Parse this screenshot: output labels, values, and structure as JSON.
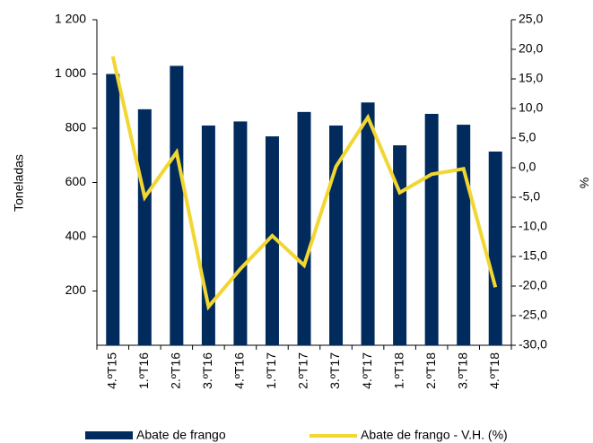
{
  "chart_data": {
    "type": "bar",
    "categories": [
      "4.ºT15",
      "1.ºT16",
      "2.ºT16",
      "3.ºT16",
      "4.ºT16",
      "1.ºT17",
      "2.ºT17",
      "3.ºT17",
      "4.ºT17",
      "1.ºT18",
      "2.ºT18",
      "3.ºT18",
      "4.ºT18"
    ],
    "ylabel": "Toneladas",
    "y2label": "%",
    "ylim": [
      0,
      1200
    ],
    "yticks": [
      200,
      400,
      600,
      800,
      {
        "value": 1000,
        "label": "1 000"
      },
      {
        "value": 1200,
        "label": "1 200"
      }
    ],
    "y2lim": [
      -30,
      25
    ],
    "y2ticks": [
      {
        "value": 25,
        "label": "25,0"
      },
      {
        "value": 20,
        "label": "20,0"
      },
      {
        "value": 15,
        "label": "15,0"
      },
      {
        "value": 10,
        "label": "10,0"
      },
      {
        "value": 5,
        "label": "5,0"
      },
      {
        "value": 0,
        "label": "0,0"
      },
      {
        "value": -5,
        "label": "-5,0"
      },
      {
        "value": -10,
        "label": "-10,0"
      },
      {
        "value": -15,
        "label": "-15,0"
      },
      {
        "value": -20,
        "label": "-20,0"
      },
      {
        "value": -25,
        "label": "-25,0"
      },
      {
        "value": -30,
        "label": "-30,0"
      }
    ],
    "series": [
      {
        "name": "Abate de frango",
        "type": "bar",
        "axis": "y",
        "color": "#002b5c",
        "values": [
          1000,
          870,
          1030,
          810,
          825,
          770,
          860,
          810,
          895,
          737,
          853,
          813,
          714
        ]
      },
      {
        "name": "Abate de frango - V.H. (%)",
        "type": "line",
        "axis": "y2",
        "color": "#f2d632",
        "values": [
          18.8,
          -5.0,
          2.6,
          -23.5,
          -17.1,
          -11.5,
          -16.5,
          0.2,
          8.5,
          -4.2,
          -1.1,
          -0.2,
          -20.2
        ]
      }
    ]
  }
}
